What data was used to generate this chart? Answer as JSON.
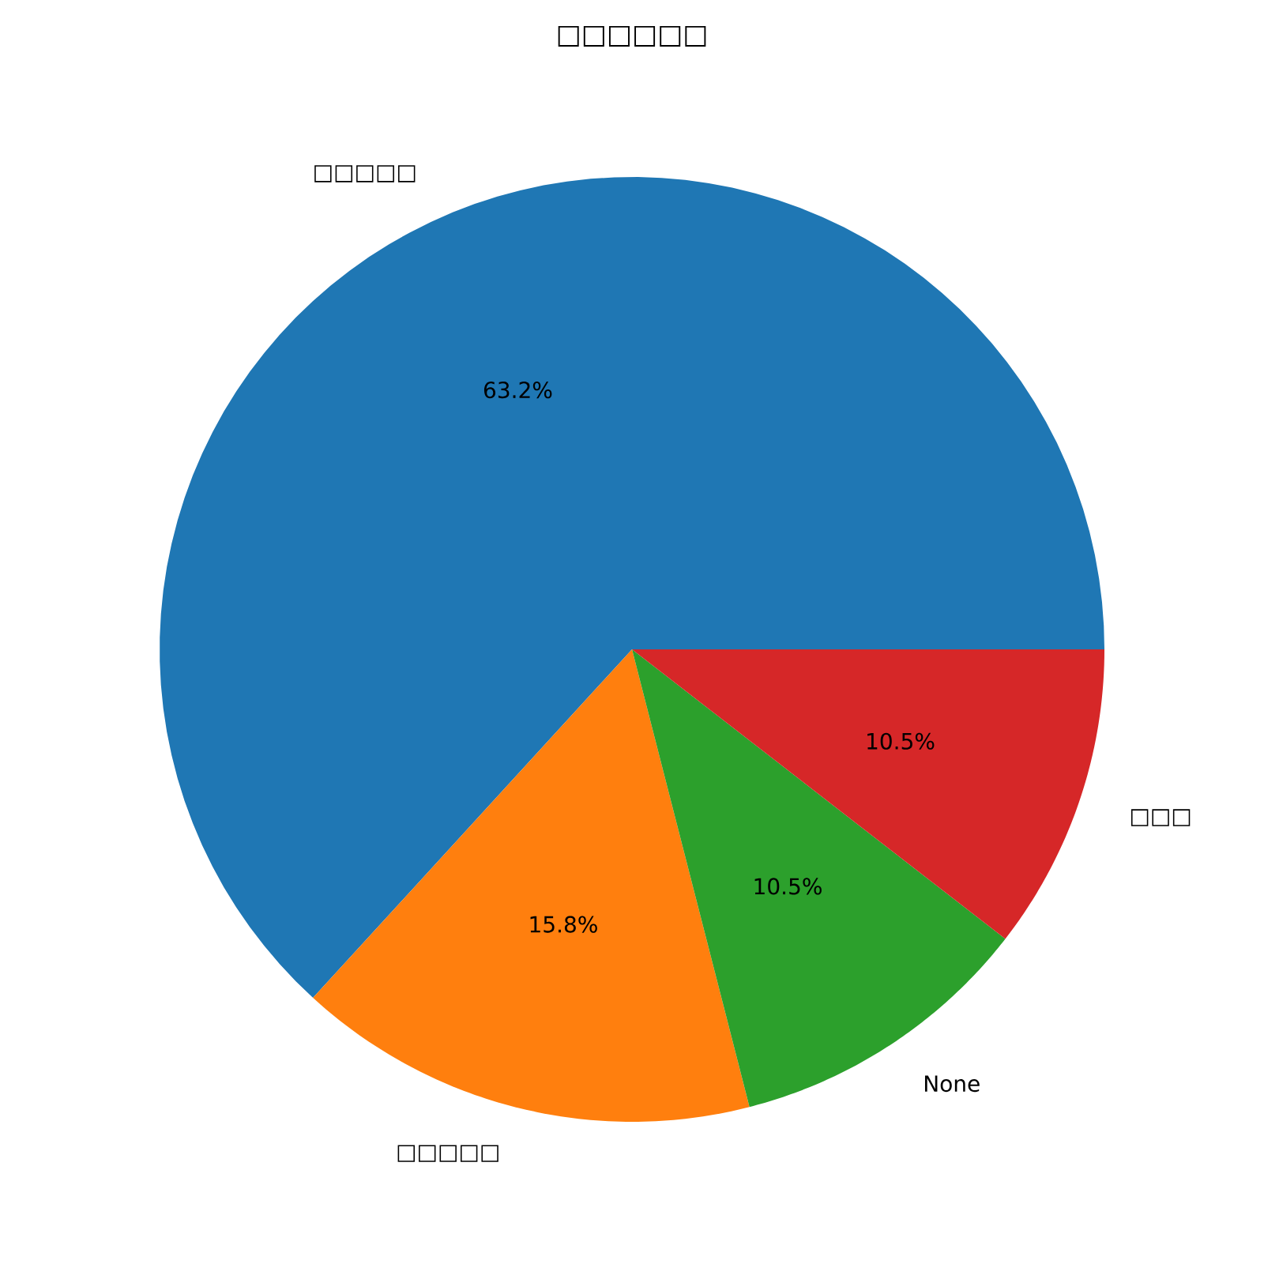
{
  "chart_data": {
    "type": "pie",
    "title": "□□□□□□",
    "categories": [
      "□□□□□",
      "□□□□□",
      "None",
      "□□□"
    ],
    "values": [
      63.2,
      15.8,
      10.5,
      10.5
    ],
    "colors": [
      "#1f77b4",
      "#ff7f0e",
      "#2ca02c",
      "#d62728"
    ],
    "value_labels": [
      "63.2%",
      "15.8%",
      "10.5%",
      "10.5%"
    ]
  }
}
